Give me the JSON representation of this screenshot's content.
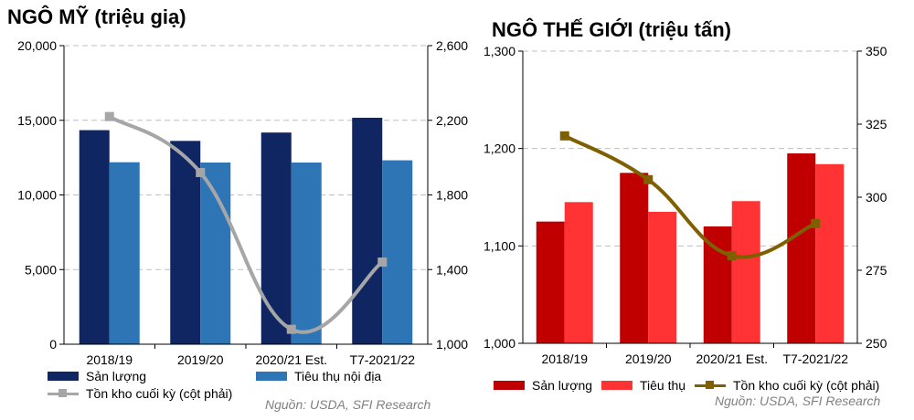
{
  "chart_data": [
    {
      "type": "bar",
      "title": "NGÔ MỸ (triệu giạ)",
      "categories": [
        "2018/19",
        "2019/20",
        "2020/21 Est.",
        "T7-2021/22"
      ],
      "series": [
        {
          "name": "Sản lượng",
          "kind": "bar",
          "axis": "left",
          "values": [
            14340,
            13620,
            14180,
            15170
          ]
        },
        {
          "name": "Tiêu thụ nội địa",
          "kind": "bar",
          "axis": "left",
          "values": [
            12190,
            12170,
            12170,
            12320
          ]
        },
        {
          "name": "Tồn kho cuối kỳ (cột phải)",
          "kind": "line",
          "axis": "right",
          "values": [
            2220,
            1920,
            1080,
            1440
          ]
        }
      ],
      "ylim": [
        0,
        20000
      ],
      "y_ticks": [
        "0",
        "5,000",
        "10,000",
        "15,000",
        "20,000"
      ],
      "y_tick_values": [
        0,
        5000,
        10000,
        15000,
        20000
      ],
      "y2lim": [
        1000,
        2600
      ],
      "y2_ticks": [
        "1,000",
        "1,400",
        "1,800",
        "2,200",
        "2,600"
      ],
      "y2_tick_values": [
        1000,
        1400,
        1800,
        2200,
        2600
      ],
      "grid": true,
      "legend_position": "bottom",
      "colors": {
        "bar1": "#0f2663",
        "bar2": "#2e75b6",
        "line": "#a6a6a6"
      },
      "source": "Nguồn: USDA, SFI Research"
    },
    {
      "type": "bar",
      "title": "NGÔ THẾ GIỚI (triệu tấn)",
      "categories": [
        "2018/19",
        "2019/20",
        "2020/21 Est.",
        "T7-2021/22"
      ],
      "series": [
        {
          "name": "Sản lượng",
          "kind": "bar",
          "axis": "left",
          "values": [
            1125,
            1175,
            1120,
            1195
          ]
        },
        {
          "name": "Tiêu thụ",
          "kind": "bar",
          "axis": "left",
          "values": [
            1145,
            1135,
            1146,
            1184
          ]
        },
        {
          "name": "Tồn kho cuối kỳ (cột phải)",
          "kind": "line",
          "axis": "right",
          "values": [
            321,
            306,
            280,
            291
          ]
        }
      ],
      "ylim": [
        1000,
        1300
      ],
      "y_ticks": [
        "1,000",
        "1,100",
        "1,200",
        "1,300"
      ],
      "y_tick_values": [
        1000,
        1100,
        1200,
        1300
      ],
      "y2lim": [
        250,
        350
      ],
      "y2_ticks": [
        "250",
        "275",
        "300",
        "325",
        "350"
      ],
      "y2_tick_values": [
        250,
        275,
        300,
        325,
        350
      ],
      "grid": true,
      "legend_position": "bottom",
      "colors": {
        "bar1": "#c00000",
        "bar2": "#ff3333",
        "line": "#7f6000"
      },
      "source": "Nguồn: USDA, SFI Research"
    }
  ]
}
